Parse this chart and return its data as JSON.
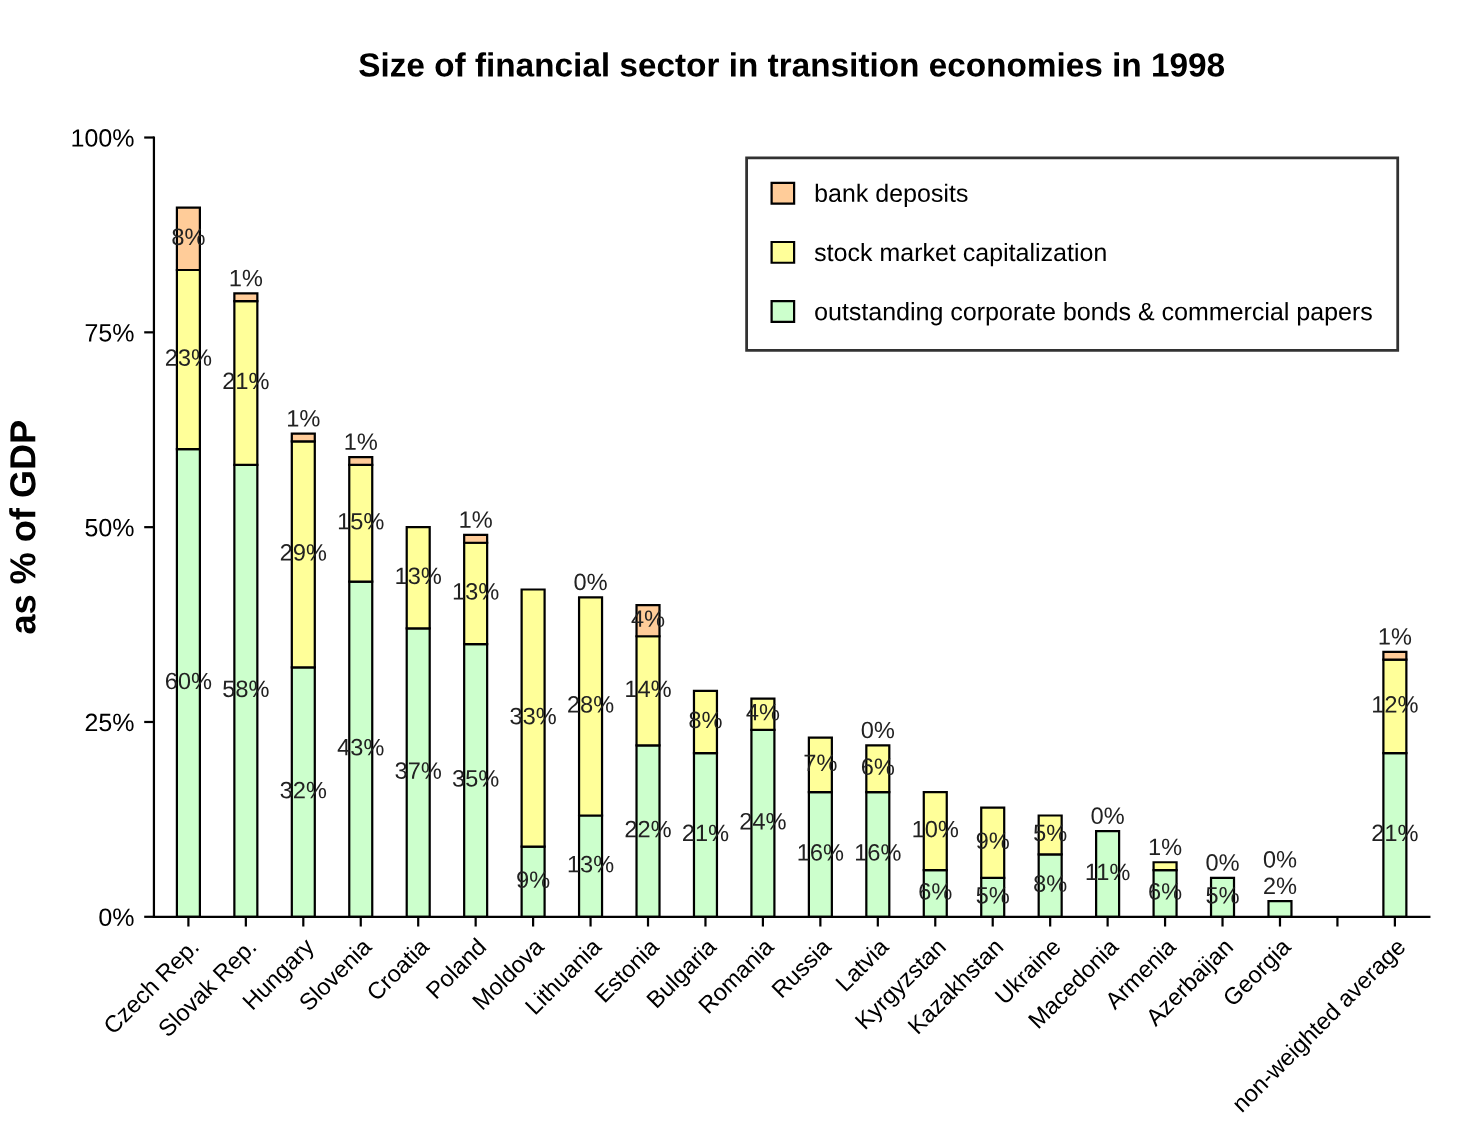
{
  "chart_data": {
    "type": "bar",
    "title": "Size of financial sector in transition economies in 1998",
    "ylabel": "as % of GDP",
    "categories": [
      "Czech Rep.",
      "Slovak Rep.",
      "Hungary",
      "Slovenia",
      "Croatia",
      "Poland",
      "Moldova",
      "Lithuania",
      "Estonia",
      "Bulgaria",
      "Romania",
      "Russia",
      "Latvia",
      "Kyrgyzstan",
      "Kazakhstan",
      "Ukraine",
      "Macedonia",
      "Armenia",
      "Azerbaijan",
      "Georgia",
      null,
      "non-weighted average"
    ],
    "stacked": true,
    "series": [
      {
        "name": "outstanding corporate bonds & commercial papers",
        "color": "#ccffcc",
        "values": [
          60,
          58,
          32,
          43,
          37,
          35,
          9,
          13,
          22,
          21,
          24,
          16,
          16,
          6,
          5,
          8,
          11,
          6,
          5,
          2,
          null,
          21
        ],
        "value_labels": [
          "60%",
          "58%",
          "32%",
          "43%",
          "37%",
          "35%",
          "9%",
          "13%",
          "22%",
          "21%",
          "24%",
          "16%",
          "16%",
          "6%",
          "5%",
          "8%",
          "11%",
          "6%",
          "5%",
          "2%",
          null,
          "21%"
        ]
      },
      {
        "name": "stock market capitalization",
        "color": "#ffff99",
        "values": [
          23,
          21,
          29,
          15,
          13,
          13,
          33,
          28,
          14,
          8,
          4,
          7,
          6,
          10,
          9,
          5,
          0,
          1,
          0,
          0,
          null,
          12
        ],
        "value_labels": [
          "23%",
          "21%",
          "29%",
          "15%",
          "13%",
          "13%",
          "33%",
          "28%",
          "14%",
          "8%",
          "4%",
          "7%",
          "6%",
          "10%",
          "9%",
          "5%",
          "0%",
          "1%",
          "0%",
          "0%",
          null,
          "12%"
        ]
      },
      {
        "name": "bank deposits",
        "color": "#ffcc99",
        "values": [
          8,
          1,
          1,
          1,
          null,
          1,
          null,
          0,
          4,
          null,
          null,
          null,
          0,
          null,
          null,
          null,
          null,
          null,
          null,
          null,
          null,
          1
        ],
        "value_labels": [
          "8%",
          "1%",
          "1%",
          "1%",
          null,
          "1%",
          null,
          "0%",
          "4%",
          null,
          null,
          null,
          "0%",
          null,
          null,
          null,
          null,
          null,
          null,
          null,
          null,
          "1%"
        ]
      }
    ],
    "ylim": [
      0,
      100
    ],
    "yticks": [
      {
        "value": 0,
        "label": "0%"
      },
      {
        "value": 25,
        "label": "25%"
      },
      {
        "value": 50,
        "label": "50%"
      },
      {
        "value": 75,
        "label": "75%"
      },
      {
        "value": 100,
        "label": "100%"
      }
    ],
    "legend": "top right",
    "grid": false
  }
}
